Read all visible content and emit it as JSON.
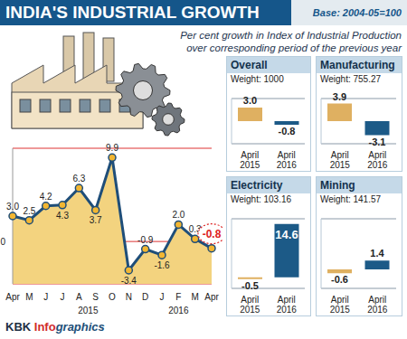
{
  "title": "INDIA'S INDUSTRIAL GROWTH",
  "base": "Base: 2004-05=100",
  "subtitle": "Per cent growth in Index of Industrial Production over corresponding period of the previous year",
  "source": "KBK Infographics",
  "chart_data": [
    {
      "type": "line",
      "categories": [
        "Apr",
        "M",
        "J",
        "J",
        "A",
        "S",
        "O",
        "N",
        "D",
        "J",
        "F",
        "M",
        "Apr"
      ],
      "values": [
        3.0,
        2.5,
        4.2,
        4.3,
        6.3,
        3.7,
        9.9,
        -3.4,
        -0.9,
        -1.6,
        2.0,
        0.3,
        -0.8
      ],
      "value_labels": [
        "3.0",
        "2.5",
        "4.2",
        "4.3",
        "6.3",
        "3.7",
        "9.9",
        "-3.4",
        "-0.9",
        "-1.6",
        "2.0",
        "0.3",
        "-0.8"
      ],
      "data_labels": true,
      "annotations": [
        "2015",
        "2016"
      ],
      "color": "#1f4e79",
      "marker": "circle",
      "ylim": [
        -5,
        11
      ],
      "yticks": [
        0
      ],
      "grid": true
    },
    {
      "type": "bar",
      "title": "Overall",
      "subtitle": "Weight: 1000",
      "categories": [
        "April 2015",
        "April 2016"
      ],
      "values": [
        3.0,
        -0.8
      ],
      "value_labels": [
        "3.0",
        "-0.8"
      ],
      "colors": [
        "#dfb061",
        "#1c5a87"
      ],
      "data_labels": true,
      "tick_labels": "x",
      "ylim": [
        -5,
        5
      ],
      "yticks": [
        0
      ],
      "grid": true
    },
    {
      "type": "bar",
      "title": "Manufacturing",
      "subtitle": "Weight: 755.27",
      "categories": [
        "April 2015",
        "April 2016"
      ],
      "values": [
        3.9,
        -3.1
      ],
      "value_labels": [
        "3.9",
        "-3.1"
      ],
      "colors": [
        "#dfb061",
        "#1c5a87"
      ],
      "data_labels": true,
      "tick_labels": "x",
      "ylim": [
        -5,
        5
      ],
      "yticks": [
        0
      ],
      "grid": true
    },
    {
      "type": "bar",
      "title": "Electricity",
      "subtitle": "Weight: 103.16",
      "categories": [
        "April 2015",
        "April 2016"
      ],
      "values": [
        -0.5,
        14.6
      ],
      "value_labels": [
        "-0.5",
        "14.6"
      ],
      "colors": [
        "#dfb061",
        "#1c5a87"
      ],
      "data_labels": true,
      "tick_labels": "x",
      "ylim": [
        -3,
        16
      ],
      "yticks": [
        0
      ],
      "grid": true
    },
    {
      "type": "bar",
      "title": "Mining",
      "subtitle": "Weight: 141.57",
      "categories": [
        "April 2015",
        "April 2016"
      ],
      "values": [
        -0.6,
        1.4
      ],
      "value_labels": [
        "-0.6",
        "1.4"
      ],
      "colors": [
        "#dfb061",
        "#1c5a87"
      ],
      "data_labels": true,
      "tick_labels": "x",
      "ylim": [
        -3,
        8
      ],
      "yticks": [
        0
      ],
      "grid": true
    }
  ]
}
